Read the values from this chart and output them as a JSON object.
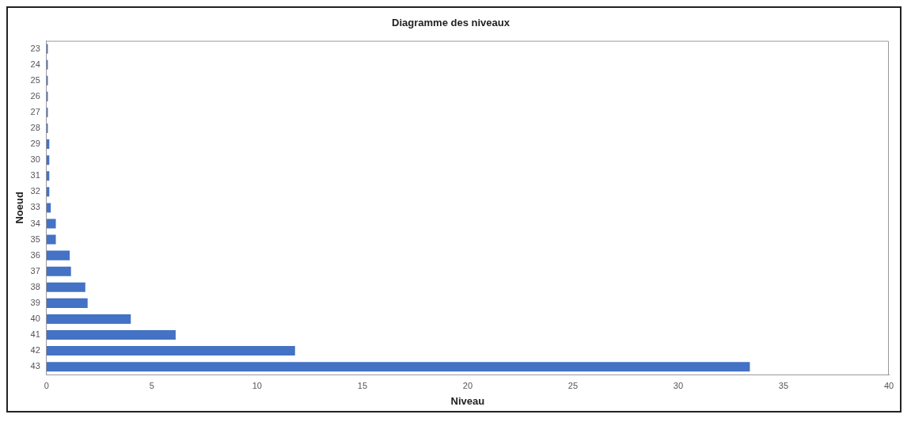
{
  "chart_data": {
    "type": "bar",
    "orientation": "horizontal",
    "title": "Diagramme des niveaux",
    "xlabel": "Niveau",
    "ylabel": "Noeud",
    "categories": [
      "23",
      "24",
      "25",
      "26",
      "27",
      "28",
      "29",
      "30",
      "31",
      "32",
      "33",
      "34",
      "35",
      "36",
      "37",
      "38",
      "39",
      "40",
      "41",
      "42",
      "43"
    ],
    "values": [
      0.06,
      0.06,
      0.06,
      0.06,
      0.06,
      0.06,
      0.13,
      0.13,
      0.13,
      0.13,
      0.2,
      0.44,
      0.44,
      1.1,
      1.16,
      1.84,
      1.95,
      4.0,
      6.13,
      11.8,
      33.4
    ],
    "color": "#4472c4",
    "xlim": [
      0,
      40
    ],
    "xticks": [
      0,
      5,
      10,
      15,
      20,
      25,
      30,
      35,
      40
    ],
    "grid": false,
    "legend": false
  }
}
